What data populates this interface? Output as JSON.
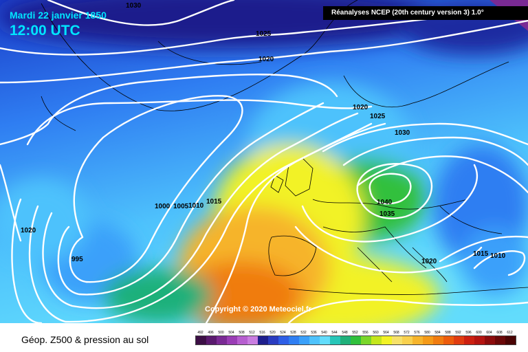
{
  "header": {
    "date": "Mardi 22 janvier 1850",
    "time": "12:00 UTC",
    "source": "Réanalyses NCEP (20th century version 3) 1.0°"
  },
  "copyright": "Copyright © 2020 Meteociel.fr",
  "footer": {
    "title": "Géop. Z500 & pression au sol"
  },
  "isobar_labels": [
    "1030",
    "1025",
    "1020",
    "1020",
    "1025",
    "1030",
    "1040",
    "1035",
    "1000",
    "1005",
    "1010",
    "1015",
    "1020",
    "995",
    "1020",
    "1015",
    "1010"
  ],
  "legend": {
    "ticks": [
      "492",
      "496",
      "500",
      "504",
      "508",
      "512",
      "516",
      "520",
      "524",
      "528",
      "532",
      "536",
      "540",
      "544",
      "548",
      "552",
      "556",
      "560",
      "564",
      "568",
      "572",
      "576",
      "580",
      "584",
      "588",
      "592",
      "596",
      "600",
      "604",
      "608",
      "612"
    ],
    "colors": [
      "#3c0f45",
      "#5a1a6e",
      "#7a2a94",
      "#9a3db5",
      "#b65ecf",
      "#c97de0",
      "#1e1e8c",
      "#2a3cc0",
      "#2e5ee6",
      "#2f7ef2",
      "#3aa0fa",
      "#4ec2fc",
      "#62dcfc",
      "#27c6b8",
      "#1fb07a",
      "#30c03c",
      "#7ad62a",
      "#c4e61c",
      "#f2f226",
      "#f6e16a",
      "#f8d04e",
      "#f6b42c",
      "#f49a18",
      "#f07c10",
      "#ec5c0c",
      "#e03c10",
      "#cc2010",
      "#b41410",
      "#8c0c0c",
      "#6a0808",
      "#4a0404"
    ]
  }
}
